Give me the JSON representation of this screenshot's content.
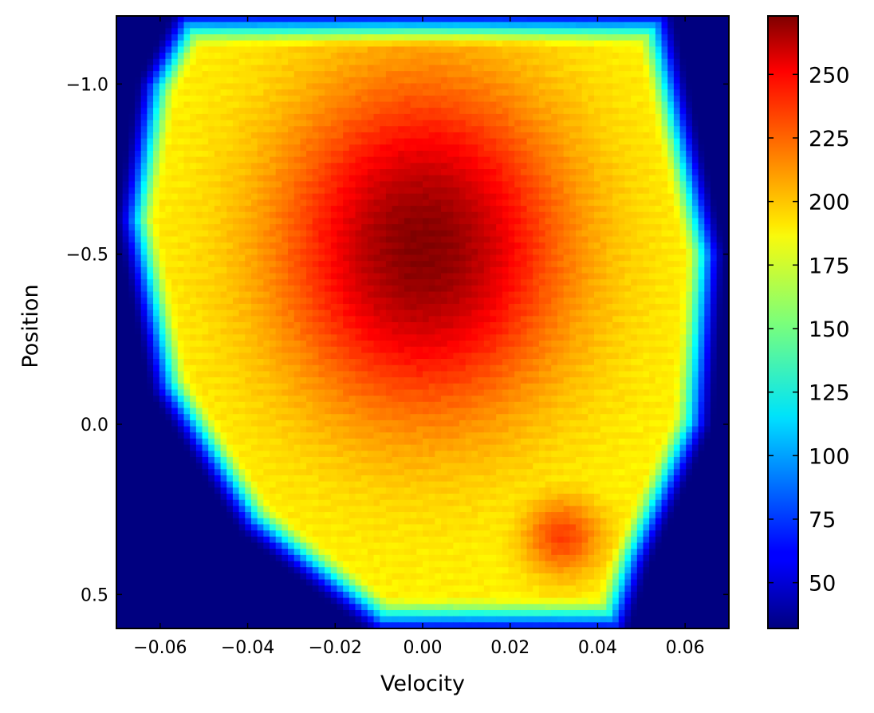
{
  "chart_data": {
    "type": "heatmap",
    "title": "",
    "xlabel": "Velocity",
    "ylabel": "Position",
    "xlim": [
      -0.07,
      0.07
    ],
    "ylim": [
      0.6,
      -1.2
    ],
    "x_ticks": [
      -0.06,
      -0.04,
      -0.02,
      0.0,
      0.02,
      0.04,
      0.06
    ],
    "x_tick_labels": [
      "−0.06",
      "−0.04",
      "−0.02",
      "0.00",
      "0.02",
      "0.04",
      "0.06"
    ],
    "y_ticks": [
      -1.0,
      -0.5,
      0.0,
      0.5
    ],
    "y_tick_labels": [
      "−1.0",
      "−0.5",
      "0.0",
      "0.5"
    ],
    "y_inverted": true,
    "grid": false,
    "colormap": "jet",
    "colorbar": {
      "range": [
        32,
        273
      ],
      "ticks": [
        50,
        75,
        100,
        125,
        150,
        175,
        200,
        225,
        250
      ],
      "tick_labels": [
        "50",
        "75",
        "100",
        "125",
        "150",
        "175",
        "200",
        "225",
        "250"
      ]
    },
    "grid_resolution": [
      100,
      100
    ],
    "value_model": {
      "description": "approximate value field read off the image",
      "background": 32,
      "peak": {
        "velocity": 0.0,
        "position": -0.52,
        "value": 272
      },
      "plateau_min": 185,
      "secondary_peak": {
        "velocity": 0.032,
        "position": 0.33,
        "value": 228
      },
      "boundary": [
        [
          -0.055,
          -1.2
        ],
        [
          0.055,
          -1.2
        ],
        [
          0.06,
          -0.9
        ],
        [
          0.067,
          -0.5
        ],
        [
          0.064,
          0.0
        ],
        [
          0.05,
          0.4
        ],
        [
          0.045,
          0.6
        ],
        [
          -0.01,
          0.6
        ],
        [
          -0.04,
          0.3
        ],
        [
          -0.06,
          -0.1
        ],
        [
          -0.068,
          -0.6
        ],
        [
          -0.063,
          -1.0
        ]
      ]
    }
  }
}
